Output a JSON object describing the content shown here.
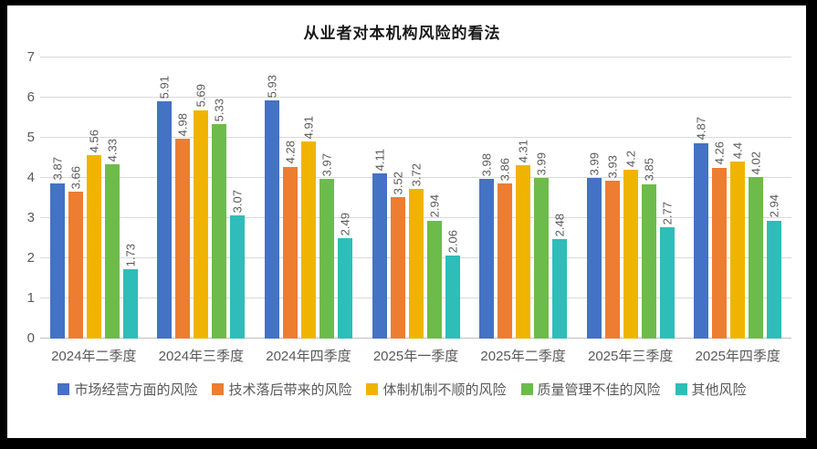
{
  "title": "从业者对本机构风险的看法",
  "chart_data": {
    "type": "bar",
    "title": "从业者对本机构风险的看法",
    "categories": [
      "2024年二季度",
      "2024年三季度",
      "2024年四季度",
      "2025年一季度",
      "2025年二季度",
      "2025年三季度",
      "2025年四季度"
    ],
    "series": [
      {
        "name": "市场经营方面的风险",
        "color": "#4472C4",
        "values": [
          3.87,
          5.91,
          5.93,
          4.11,
          3.98,
          3.99,
          4.87
        ]
      },
      {
        "name": "技术落后带来的风险",
        "color": "#ED7D31",
        "values": [
          3.66,
          4.98,
          4.28,
          3.52,
          3.86,
          3.93,
          4.26
        ]
      },
      {
        "name": "体制机制不顺的风险",
        "color": "#F0B400",
        "values": [
          4.56,
          5.69,
          4.91,
          3.72,
          4.31,
          4.2,
          4.4
        ]
      },
      {
        "name": "质量管理不佳的风险",
        "color": "#6DBB4B",
        "values": [
          4.33,
          5.33,
          3.97,
          2.94,
          3.99,
          3.85,
          4.02
        ]
      },
      {
        "name": "其他风险",
        "color": "#2EBDB8",
        "values": [
          1.73,
          3.07,
          2.49,
          2.06,
          2.48,
          2.77,
          2.94
        ]
      }
    ],
    "xlabel": "",
    "ylabel": "",
    "ylim": [
      0,
      7
    ],
    "yticks": [
      0,
      1,
      2,
      3,
      4,
      5,
      6,
      7
    ],
    "grid": true,
    "legend_position": "bottom",
    "data_labels": true,
    "data_label_rotation": "vertical"
  }
}
